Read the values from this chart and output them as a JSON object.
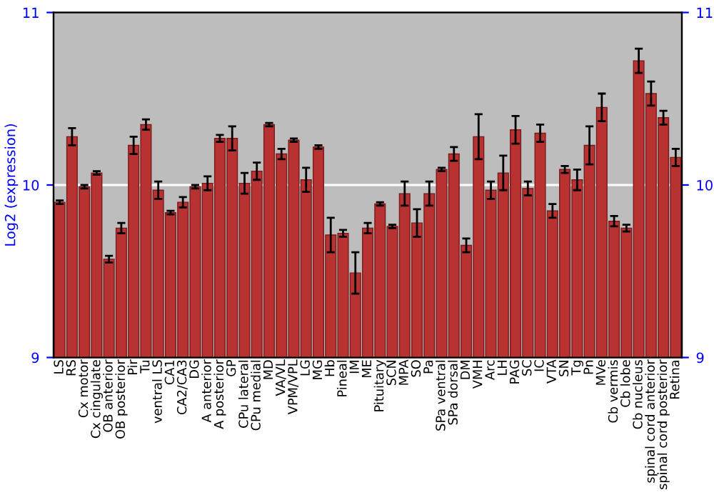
{
  "chart_data": {
    "type": "bar",
    "ylabel": "Log2 (expression)",
    "categories": [
      "LS",
      "RS",
      "Cx motor",
      "Cx cingulate",
      "OB anterior",
      "OB posterior",
      "Pir",
      "Tu",
      "ventral LS",
      "CA1",
      "CA2/CA3",
      "DG",
      "A anterior",
      "A posterior",
      "GP",
      "CPu lateral",
      "CPu medial",
      "MD",
      "VA/VL",
      "VPM/VPL",
      "LG",
      "MG",
      "Hb",
      "Pineal",
      "IM",
      "ME",
      "Pituitary",
      "SCN",
      "MPA",
      "SO",
      "Pa",
      "SPa ventral",
      "SPa dorsal",
      "DM",
      "VMH",
      "Arc",
      "LH",
      "PAG",
      "SC",
      "IC",
      "VTA",
      "SN",
      "Tg",
      "Pn",
      "MVe",
      "Cb vermis",
      "Cb lobe",
      "Cb nucleus",
      "spinal cord anterior",
      "spinal cord posterior",
      "Retina"
    ],
    "values": [
      9.9,
      10.28,
      9.99,
      10.07,
      9.57,
      9.75,
      10.23,
      10.35,
      9.97,
      9.84,
      9.9,
      9.99,
      10.01,
      10.27,
      10.27,
      10.01,
      10.08,
      10.35,
      10.18,
      10.26,
      10.03,
      10.22,
      9.71,
      9.72,
      9.49,
      9.75,
      9.89,
      9.76,
      9.95,
      9.78,
      9.95,
      10.09,
      10.18,
      9.65,
      10.28,
      9.97,
      10.07,
      10.32,
      9.98,
      10.3,
      9.85,
      10.09,
      10.03,
      10.23,
      10.45,
      9.79,
      9.75,
      10.72,
      10.53,
      10.39,
      10.16
    ],
    "errors": [
      0.01,
      0.05,
      0.01,
      0.01,
      0.02,
      0.03,
      0.05,
      0.03,
      0.05,
      0.01,
      0.03,
      0.01,
      0.04,
      0.02,
      0.07,
      0.06,
      0.05,
      0.01,
      0.03,
      0.01,
      0.07,
      0.01,
      0.1,
      0.02,
      0.12,
      0.03,
      0.01,
      0.01,
      0.07,
      0.08,
      0.07,
      0.01,
      0.04,
      0.04,
      0.13,
      0.05,
      0.1,
      0.08,
      0.04,
      0.05,
      0.04,
      0.02,
      0.06,
      0.11,
      0.08,
      0.03,
      0.02,
      0.07,
      0.07,
      0.04,
      0.05
    ],
    "color": "#b83232",
    "ylim": [
      9,
      11
    ],
    "yticks": [
      9,
      10,
      11
    ],
    "y2lim": [
      9,
      11
    ],
    "y2ticks": [
      9,
      10,
      11
    ],
    "grid": "y"
  }
}
